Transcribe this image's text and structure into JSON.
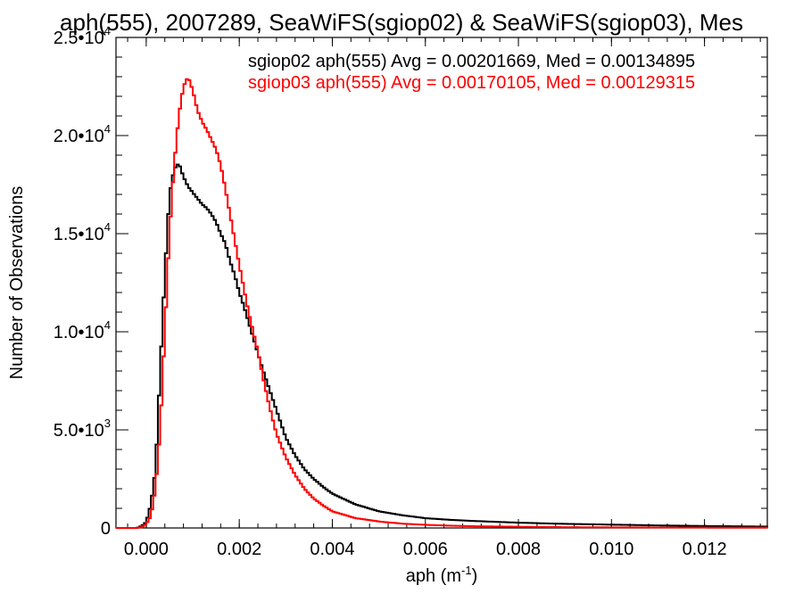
{
  "chart_data": {
    "type": "line",
    "title": "aph(555), 2007289, SeaWiFS(sgiop02) & SeaWiFS(sgiop03), Mes",
    "xlabel": "aph (m",
    "xlabel_sup": "-1",
    "xlabel_close": ")",
    "ylabel": "Number of Observations",
    "xlim": [
      -0.00065,
      0.01335
    ],
    "ylim": [
      0,
      25000
    ],
    "x_ticks": [
      0.0,
      0.002,
      0.004,
      0.006,
      0.008,
      0.01,
      0.012
    ],
    "x_tick_labels": [
      "0.000",
      "0.002",
      "0.004",
      "0.006",
      "0.008",
      "0.010",
      "0.012"
    ],
    "y_ticks": [
      0,
      5000,
      10000,
      15000,
      20000,
      25000
    ],
    "y_tick_labels": [
      {
        "base": "0",
        "exp": ""
      },
      {
        "base": "5.0•10",
        "exp": "3"
      },
      {
        "base": "1.0•10",
        "exp": "4"
      },
      {
        "base": "1.5•10",
        "exp": "4"
      },
      {
        "base": "2.0•10",
        "exp": "4"
      },
      {
        "base": "2.5•10",
        "exp": "4"
      }
    ],
    "series": [
      {
        "name": "sgiop02 aph(555) Avg = 0.00201669, Med = 0.00134895",
        "color": "#000000",
        "points": [
          [
            -0.00065,
            0
          ],
          [
            -0.0002,
            0
          ],
          [
            -0.0001,
            100
          ],
          [
            0.0,
            300
          ],
          [
            0.0001,
            1200
          ],
          [
            0.0002,
            3000
          ],
          [
            0.0003,
            8000
          ],
          [
            0.0004,
            13000
          ],
          [
            0.0005,
            17000
          ],
          [
            0.0006,
            18300
          ],
          [
            0.0007,
            18600
          ],
          [
            0.0008,
            17900
          ],
          [
            0.0009,
            17400
          ],
          [
            0.001,
            17100
          ],
          [
            0.0011,
            16800
          ],
          [
            0.0012,
            16500
          ],
          [
            0.0013,
            16300
          ],
          [
            0.0014,
            16000
          ],
          [
            0.0015,
            15600
          ],
          [
            0.0016,
            15000
          ],
          [
            0.0017,
            14500
          ],
          [
            0.0018,
            13600
          ],
          [
            0.0019,
            12900
          ],
          [
            0.002,
            12000
          ],
          [
            0.0021,
            11300
          ],
          [
            0.0022,
            10500
          ],
          [
            0.0023,
            9700
          ],
          [
            0.0024,
            8900
          ],
          [
            0.0025,
            8100
          ],
          [
            0.0026,
            7400
          ],
          [
            0.0027,
            6700
          ],
          [
            0.0028,
            6000
          ],
          [
            0.0029,
            5300
          ],
          [
            0.003,
            4600
          ],
          [
            0.0032,
            3700
          ],
          [
            0.0034,
            3000
          ],
          [
            0.0036,
            2500
          ],
          [
            0.0038,
            2100
          ],
          [
            0.004,
            1750
          ],
          [
            0.0045,
            1200
          ],
          [
            0.005,
            850
          ],
          [
            0.0055,
            650
          ],
          [
            0.006,
            500
          ],
          [
            0.0065,
            420
          ],
          [
            0.007,
            360
          ],
          [
            0.008,
            270
          ],
          [
            0.009,
            210
          ],
          [
            0.01,
            170
          ],
          [
            0.011,
            130
          ],
          [
            0.012,
            100
          ],
          [
            0.01335,
            70
          ]
        ]
      },
      {
        "name": "sgiop03 aph(555) Avg = 0.00170105, Med = 0.00129315",
        "color": "#ff0000",
        "points": [
          [
            -0.00065,
            0
          ],
          [
            -0.0002,
            0
          ],
          [
            -0.0001,
            40
          ],
          [
            0.0,
            200
          ],
          [
            0.0001,
            600
          ],
          [
            0.0002,
            2000
          ],
          [
            0.0003,
            5000
          ],
          [
            0.0004,
            10000
          ],
          [
            0.0005,
            15000
          ],
          [
            0.0006,
            18500
          ],
          [
            0.0007,
            21000
          ],
          [
            0.0008,
            22500
          ],
          [
            0.0009,
            23000
          ],
          [
            0.001,
            22300
          ],
          [
            0.0011,
            21300
          ],
          [
            0.0012,
            20700
          ],
          [
            0.0013,
            20300
          ],
          [
            0.0014,
            19800
          ],
          [
            0.0015,
            19300
          ],
          [
            0.0016,
            18500
          ],
          [
            0.0017,
            17300
          ],
          [
            0.0018,
            16000
          ],
          [
            0.0019,
            14700
          ],
          [
            0.002,
            13400
          ],
          [
            0.0021,
            12200
          ],
          [
            0.0022,
            11000
          ],
          [
            0.0023,
            10000
          ],
          [
            0.0024,
            9000
          ],
          [
            0.0025,
            7800
          ],
          [
            0.0026,
            6700
          ],
          [
            0.0027,
            5700
          ],
          [
            0.0028,
            4800
          ],
          [
            0.0029,
            4200
          ],
          [
            0.003,
            3600
          ],
          [
            0.0032,
            2700
          ],
          [
            0.0034,
            2000
          ],
          [
            0.0036,
            1500
          ],
          [
            0.0038,
            1150
          ],
          [
            0.004,
            850
          ],
          [
            0.0045,
            500
          ],
          [
            0.005,
            330
          ],
          [
            0.0055,
            220
          ],
          [
            0.006,
            160
          ],
          [
            0.0065,
            120
          ],
          [
            0.007,
            90
          ],
          [
            0.008,
            60
          ],
          [
            0.009,
            40
          ],
          [
            0.01,
            30
          ],
          [
            0.011,
            25
          ],
          [
            0.012,
            20
          ],
          [
            0.01335,
            15
          ]
        ]
      }
    ],
    "grid": false,
    "legend_position": "top-right"
  }
}
